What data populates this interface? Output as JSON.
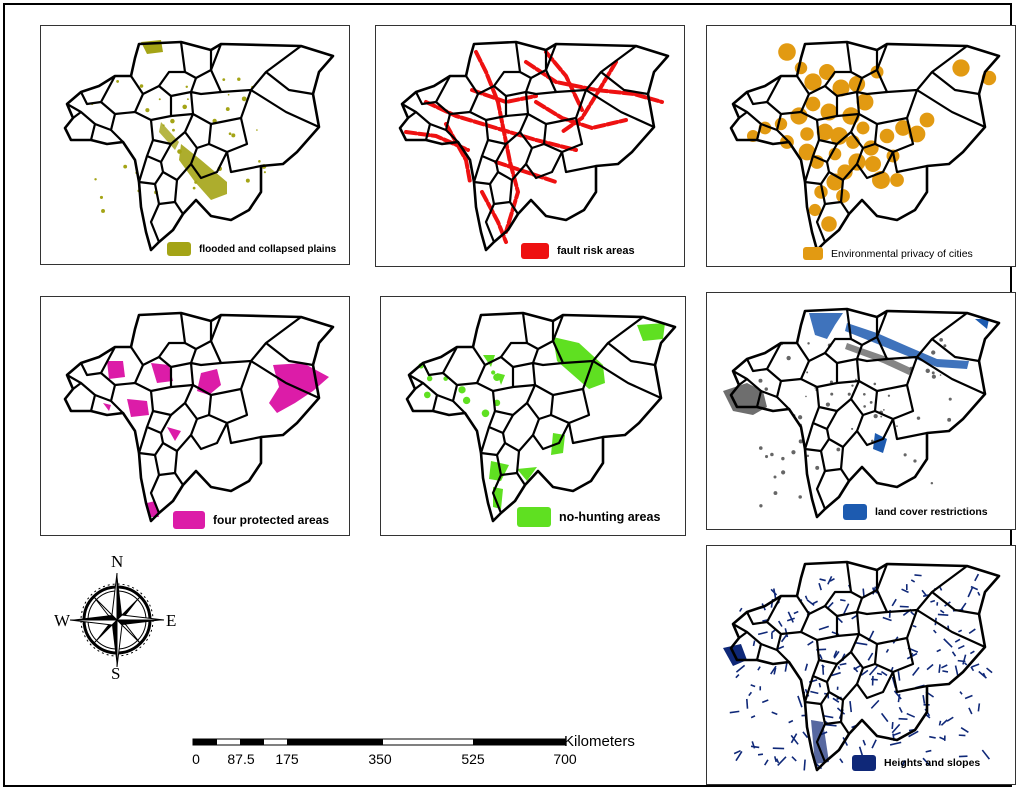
{
  "panels": [
    {
      "id": "flooded",
      "legend_label": "flooded and collapsed plains",
      "color": "#a4a416",
      "pattern": "flood"
    },
    {
      "id": "fault",
      "legend_label": "fault risk areas",
      "color": "#ee1111",
      "pattern": "fault"
    },
    {
      "id": "cities",
      "legend_label": "Environmental privacy of cities",
      "color": "#e29a12",
      "pattern": "cities"
    },
    {
      "id": "protected",
      "legend_label": "four protected areas",
      "color": "#dc1ca8",
      "pattern": "protected"
    },
    {
      "id": "hunting",
      "legend_label": "no-hunting areas",
      "color": "#5fe021",
      "pattern": "hunting"
    },
    {
      "id": "landcover",
      "legend_label": "land cover restrictions",
      "color": "#1d5bb0",
      "pattern": "landcover"
    },
    {
      "id": "heights",
      "legend_label": "Heights and slopes",
      "color": "#0f2878",
      "pattern": "heights"
    }
  ],
  "compass": {
    "north": "N",
    "south": "S",
    "east": "E",
    "west": "W",
    "icon": "compass-rose-icon"
  },
  "scale_bar": {
    "unit": "Kilometers",
    "ticks": [
      "0",
      "87.5",
      "175",
      "350",
      "525",
      "700"
    ]
  }
}
